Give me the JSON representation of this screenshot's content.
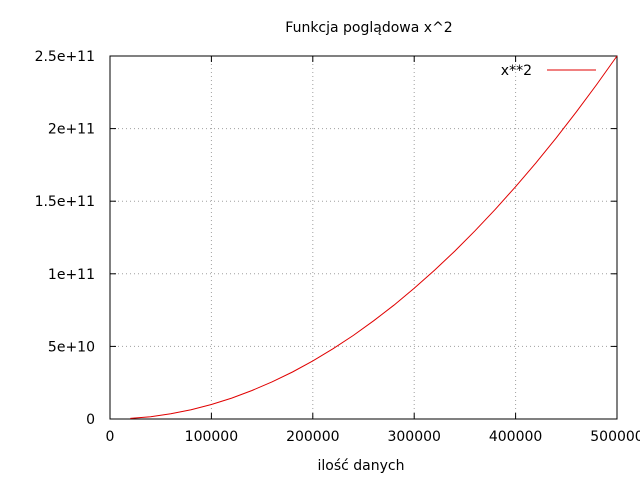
{
  "chart_data": {
    "type": "line",
    "title": "Funkcja poglądowa x^2",
    "xlabel": "ilość danych",
    "ylabel": "",
    "xlim": [
      0,
      500000
    ],
    "ylim": [
      0,
      250000000000
    ],
    "grid": true,
    "legend_position": "top-right",
    "x_ticks": [
      {
        "value": 0,
        "label": "0"
      },
      {
        "value": 100000,
        "label": "100000"
      },
      {
        "value": 200000,
        "label": "200000"
      },
      {
        "value": 300000,
        "label": "300000"
      },
      {
        "value": 400000,
        "label": "400000"
      },
      {
        "value": 500000,
        "label": "500000"
      }
    ],
    "y_ticks": [
      {
        "value": 0,
        "label": "0"
      },
      {
        "value": 50000000000,
        "label": "5e+10"
      },
      {
        "value": 100000000000,
        "label": "1e+11"
      },
      {
        "value": 150000000000,
        "label": "1.5e+11"
      },
      {
        "value": 200000000000,
        "label": "2e+11"
      },
      {
        "value": 250000000000,
        "label": "2.5e+11"
      }
    ],
    "series": [
      {
        "name": "x**2",
        "color": "#e00000",
        "x": [
          20000,
          40000,
          60000,
          80000,
          100000,
          120000,
          140000,
          160000,
          180000,
          200000,
          220000,
          240000,
          260000,
          280000,
          300000,
          320000,
          340000,
          360000,
          380000,
          400000,
          420000,
          440000,
          460000,
          480000,
          500000
        ],
        "y": [
          400000000,
          1600000000,
          3600000000,
          6400000000,
          10000000000,
          14400000000,
          19600000000,
          25600000000,
          32400000000,
          40000000000,
          48400000000,
          57600000000,
          67600000000,
          78400000000,
          90000000000,
          102400000000,
          115600000000,
          129600000000,
          144400000000,
          160000000000,
          176400000000,
          193600000000,
          211600000000,
          230400000000,
          250000000000
        ]
      }
    ]
  }
}
